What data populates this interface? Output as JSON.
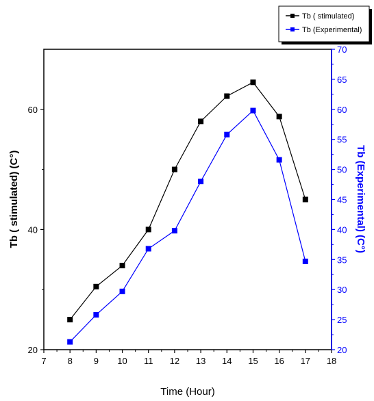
{
  "chart_data": {
    "type": "line",
    "xlabel": "Time (Hour)",
    "ylabel_left": "Tb ( stimulated) (C°)",
    "ylabel_right": "Tb (Experimental) (C°)",
    "xlim": [
      7,
      18
    ],
    "x_ticks": [
      7,
      8,
      9,
      10,
      11,
      12,
      13,
      14,
      15,
      16,
      17,
      18
    ],
    "ylim_left": [
      20,
      70
    ],
    "y_ticks_left": [
      20,
      40,
      60
    ],
    "ylim_right": [
      20,
      70
    ],
    "y_ticks_right": [
      20,
      25,
      30,
      35,
      40,
      45,
      50,
      55,
      60,
      65,
      70
    ],
    "legend_position": "top-right",
    "colors": {
      "simulated": "#000000",
      "experimental": "#0000ff"
    },
    "series": [
      {
        "name": "Tb ( stimulated)",
        "axis": "left",
        "x": [
          8,
          9,
          10,
          11,
          12,
          13,
          14,
          15,
          16,
          17
        ],
        "values": [
          25,
          30.5,
          34,
          40,
          50,
          58,
          62.2,
          64.5,
          58.8,
          45
        ]
      },
      {
        "name": "Tb (Experimental)",
        "axis": "right",
        "x": [
          8,
          9,
          10,
          11,
          12,
          13,
          14,
          15,
          16,
          17
        ],
        "values": [
          21.3,
          25.8,
          29.7,
          36.8,
          39.8,
          48,
          55.8,
          59.8,
          51.6,
          34.7
        ]
      }
    ]
  }
}
